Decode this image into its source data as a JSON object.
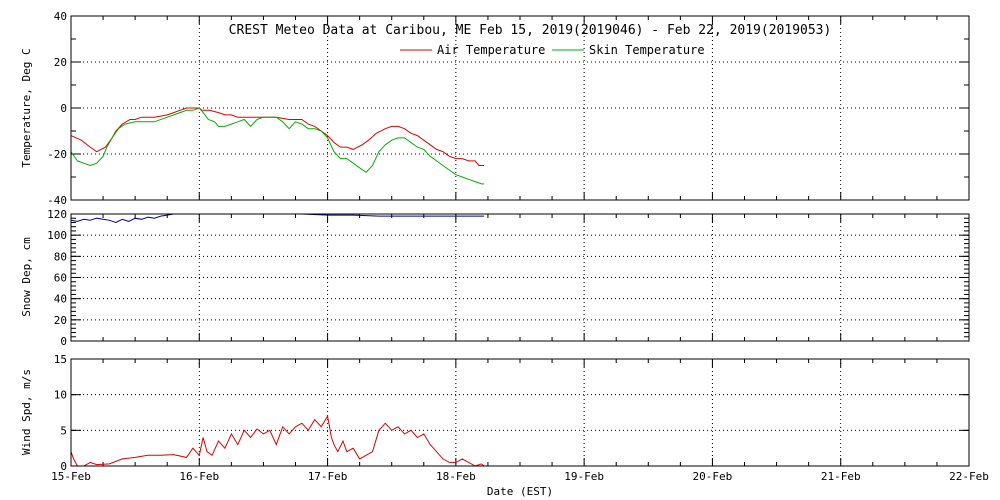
{
  "title": "CREST Meteo Data at Caribou, ME   Feb 15, 2019(2019046) - Feb 22, 2019(2019053)",
  "colors": {
    "air": "#e00000",
    "skin": "#00b000",
    "snow": "#0000a0",
    "wind": "#e00000"
  },
  "chart_data": [
    {
      "type": "line",
      "ylabel": "Temperature, Deg C",
      "ylim": [
        -40,
        40
      ],
      "yticks": [
        "-40",
        "-20",
        "0",
        "20",
        "40"
      ],
      "grid": true,
      "legend": "top-center",
      "series": [
        {
          "name": "Air Temperature",
          "x": [
            0,
            0.08,
            0.15,
            0.2,
            0.27,
            0.32,
            0.35,
            0.4,
            0.46,
            0.5,
            0.55,
            0.65,
            0.75,
            0.8,
            0.85,
            0.9,
            0.95,
            1.0,
            1.02,
            1.08,
            1.15,
            1.2,
            1.25,
            1.3,
            1.35,
            1.42,
            1.5,
            1.6,
            1.7,
            1.8,
            1.85,
            1.9,
            1.95,
            2.0,
            2.05,
            2.1,
            2.15,
            2.2,
            2.27,
            2.32,
            2.38,
            2.45,
            2.5,
            2.55,
            2.6,
            2.65,
            2.7,
            2.75,
            2.8,
            2.85,
            2.9,
            2.95,
            3.0,
            3.05,
            3.1,
            3.15,
            3.18,
            3.22
          ],
          "y": [
            -12,
            -14,
            -17,
            -19,
            -17,
            -13,
            -10,
            -7,
            -5,
            -5,
            -4,
            -4,
            -3,
            -2,
            -1,
            0,
            0,
            0,
            -1,
            -1,
            -2,
            -3,
            -3,
            -4,
            -4,
            -4,
            -4,
            -4,
            -5,
            -5,
            -7,
            -8,
            -10,
            -12,
            -15,
            -17,
            -17,
            -18,
            -16,
            -14,
            -11,
            -9,
            -8,
            -8,
            -9,
            -11,
            -12,
            -14,
            -16,
            -18,
            -19,
            -21,
            -22,
            -22,
            -23,
            -23,
            -25,
            -25
          ]
        },
        {
          "name": "Skin Temperature",
          "x": [
            0,
            0.05,
            0.1,
            0.15,
            0.2,
            0.25,
            0.28,
            0.32,
            0.37,
            0.42,
            0.5,
            0.58,
            0.65,
            0.75,
            0.8,
            0.85,
            0.9,
            0.95,
            1.0,
            1.03,
            1.07,
            1.12,
            1.15,
            1.2,
            1.25,
            1.3,
            1.35,
            1.4,
            1.45,
            1.5,
            1.55,
            1.6,
            1.65,
            1.7,
            1.75,
            1.8,
            1.85,
            1.9,
            1.95,
            2.0,
            2.05,
            2.1,
            2.15,
            2.2,
            2.25,
            2.3,
            2.35,
            2.4,
            2.45,
            2.5,
            2.55,
            2.6,
            2.65,
            2.7,
            2.75,
            2.8,
            2.85,
            2.9,
            2.95,
            3.0,
            3.05,
            3.1,
            3.15,
            3.2,
            3.22
          ],
          "y": [
            -19,
            -23,
            -24,
            -25,
            -24,
            -21,
            -17,
            -13,
            -9,
            -7,
            -6,
            -6,
            -6,
            -4,
            -3,
            -2,
            -1,
            -1,
            0,
            -2,
            -5,
            -6,
            -8,
            -8,
            -7,
            -6,
            -5,
            -8,
            -5,
            -4,
            -4,
            -4,
            -6,
            -9,
            -6,
            -7,
            -9,
            -9,
            -10,
            -13,
            -19,
            -22,
            -22,
            -24,
            -26,
            -28,
            -25,
            -19,
            -16,
            -14,
            -13,
            -13,
            -15,
            -17,
            -18,
            -21,
            -23,
            -25,
            -27,
            -29,
            -30,
            -31,
            -32,
            -33,
            -33
          ]
        }
      ]
    },
    {
      "type": "line",
      "ylabel": "Snow Dep, cm",
      "ylim": [
        0,
        120
      ],
      "yticks": [
        "0",
        "20",
        "40",
        "60",
        "80",
        "100",
        "120"
      ],
      "grid": true,
      "series": [
        {
          "name": "",
          "x": [
            0,
            0.05,
            0.1,
            0.15,
            0.2,
            0.25,
            0.3,
            0.35,
            0.4,
            0.45,
            0.5,
            0.55,
            0.6,
            0.65,
            0.7,
            0.75,
            0.8,
            0.9,
            1.0,
            1.2,
            1.4,
            1.6,
            1.8,
            2.0,
            2.2,
            2.4,
            2.6,
            2.8,
            3.0,
            3.1,
            3.22
          ],
          "y": [
            114,
            113,
            115,
            114,
            116,
            115,
            114,
            112,
            115,
            113,
            116,
            115,
            117,
            116,
            118,
            119,
            120,
            120,
            120,
            120,
            120,
            120,
            120,
            119,
            119,
            118,
            118,
            118,
            118,
            118,
            118
          ]
        }
      ]
    },
    {
      "type": "line",
      "ylabel": "Wind Spd, m/s",
      "ylim": [
        0,
        15
      ],
      "yticks": [
        "0",
        "5",
        "10",
        "15"
      ],
      "xlabel": "Date (EST)",
      "xticks": [
        "15-Feb",
        "16-Feb",
        "17-Feb",
        "18-Feb",
        "19-Feb",
        "20-Feb",
        "21-Feb",
        "22-Feb"
      ],
      "grid": true,
      "series": [
        {
          "name": "",
          "x": [
            0,
            0.02,
            0.05,
            0.1,
            0.15,
            0.2,
            0.3,
            0.4,
            0.5,
            0.6,
            0.7,
            0.8,
            0.9,
            0.95,
            1.0,
            1.03,
            1.06,
            1.1,
            1.15,
            1.2,
            1.25,
            1.3,
            1.35,
            1.4,
            1.45,
            1.5,
            1.55,
            1.6,
            1.65,
            1.7,
            1.75,
            1.8,
            1.85,
            1.9,
            1.95,
            2.0,
            2.03,
            2.05,
            2.08,
            2.12,
            2.15,
            2.2,
            2.25,
            2.3,
            2.35,
            2.4,
            2.45,
            2.5,
            2.55,
            2.6,
            2.65,
            2.7,
            2.75,
            2.8,
            2.85,
            2.9,
            2.95,
            3.0,
            3.05,
            3.1,
            3.15,
            3.2,
            3.22
          ],
          "y": [
            2,
            1,
            0,
            0,
            0.5,
            0.2,
            0.3,
            1.0,
            1.2,
            1.5,
            1.5,
            1.6,
            1.2,
            2.5,
            1.5,
            4.0,
            2.0,
            1.5,
            3.5,
            2.5,
            4.5,
            3.0,
            5.0,
            4.0,
            5.2,
            4.5,
            5.0,
            3.0,
            5.5,
            4.5,
            5.5,
            6.0,
            5.0,
            6.5,
            5.5,
            7.0,
            4.0,
            3.0,
            2.0,
            3.5,
            2.0,
            2.5,
            1.0,
            1.5,
            2.0,
            5.0,
            6.0,
            5.0,
            5.5,
            4.5,
            5.0,
            4.0,
            4.5,
            3.0,
            2.0,
            1.0,
            0.5,
            0.5,
            1.0,
            0.5,
            0,
            0.3,
            0
          ]
        }
      ]
    }
  ]
}
